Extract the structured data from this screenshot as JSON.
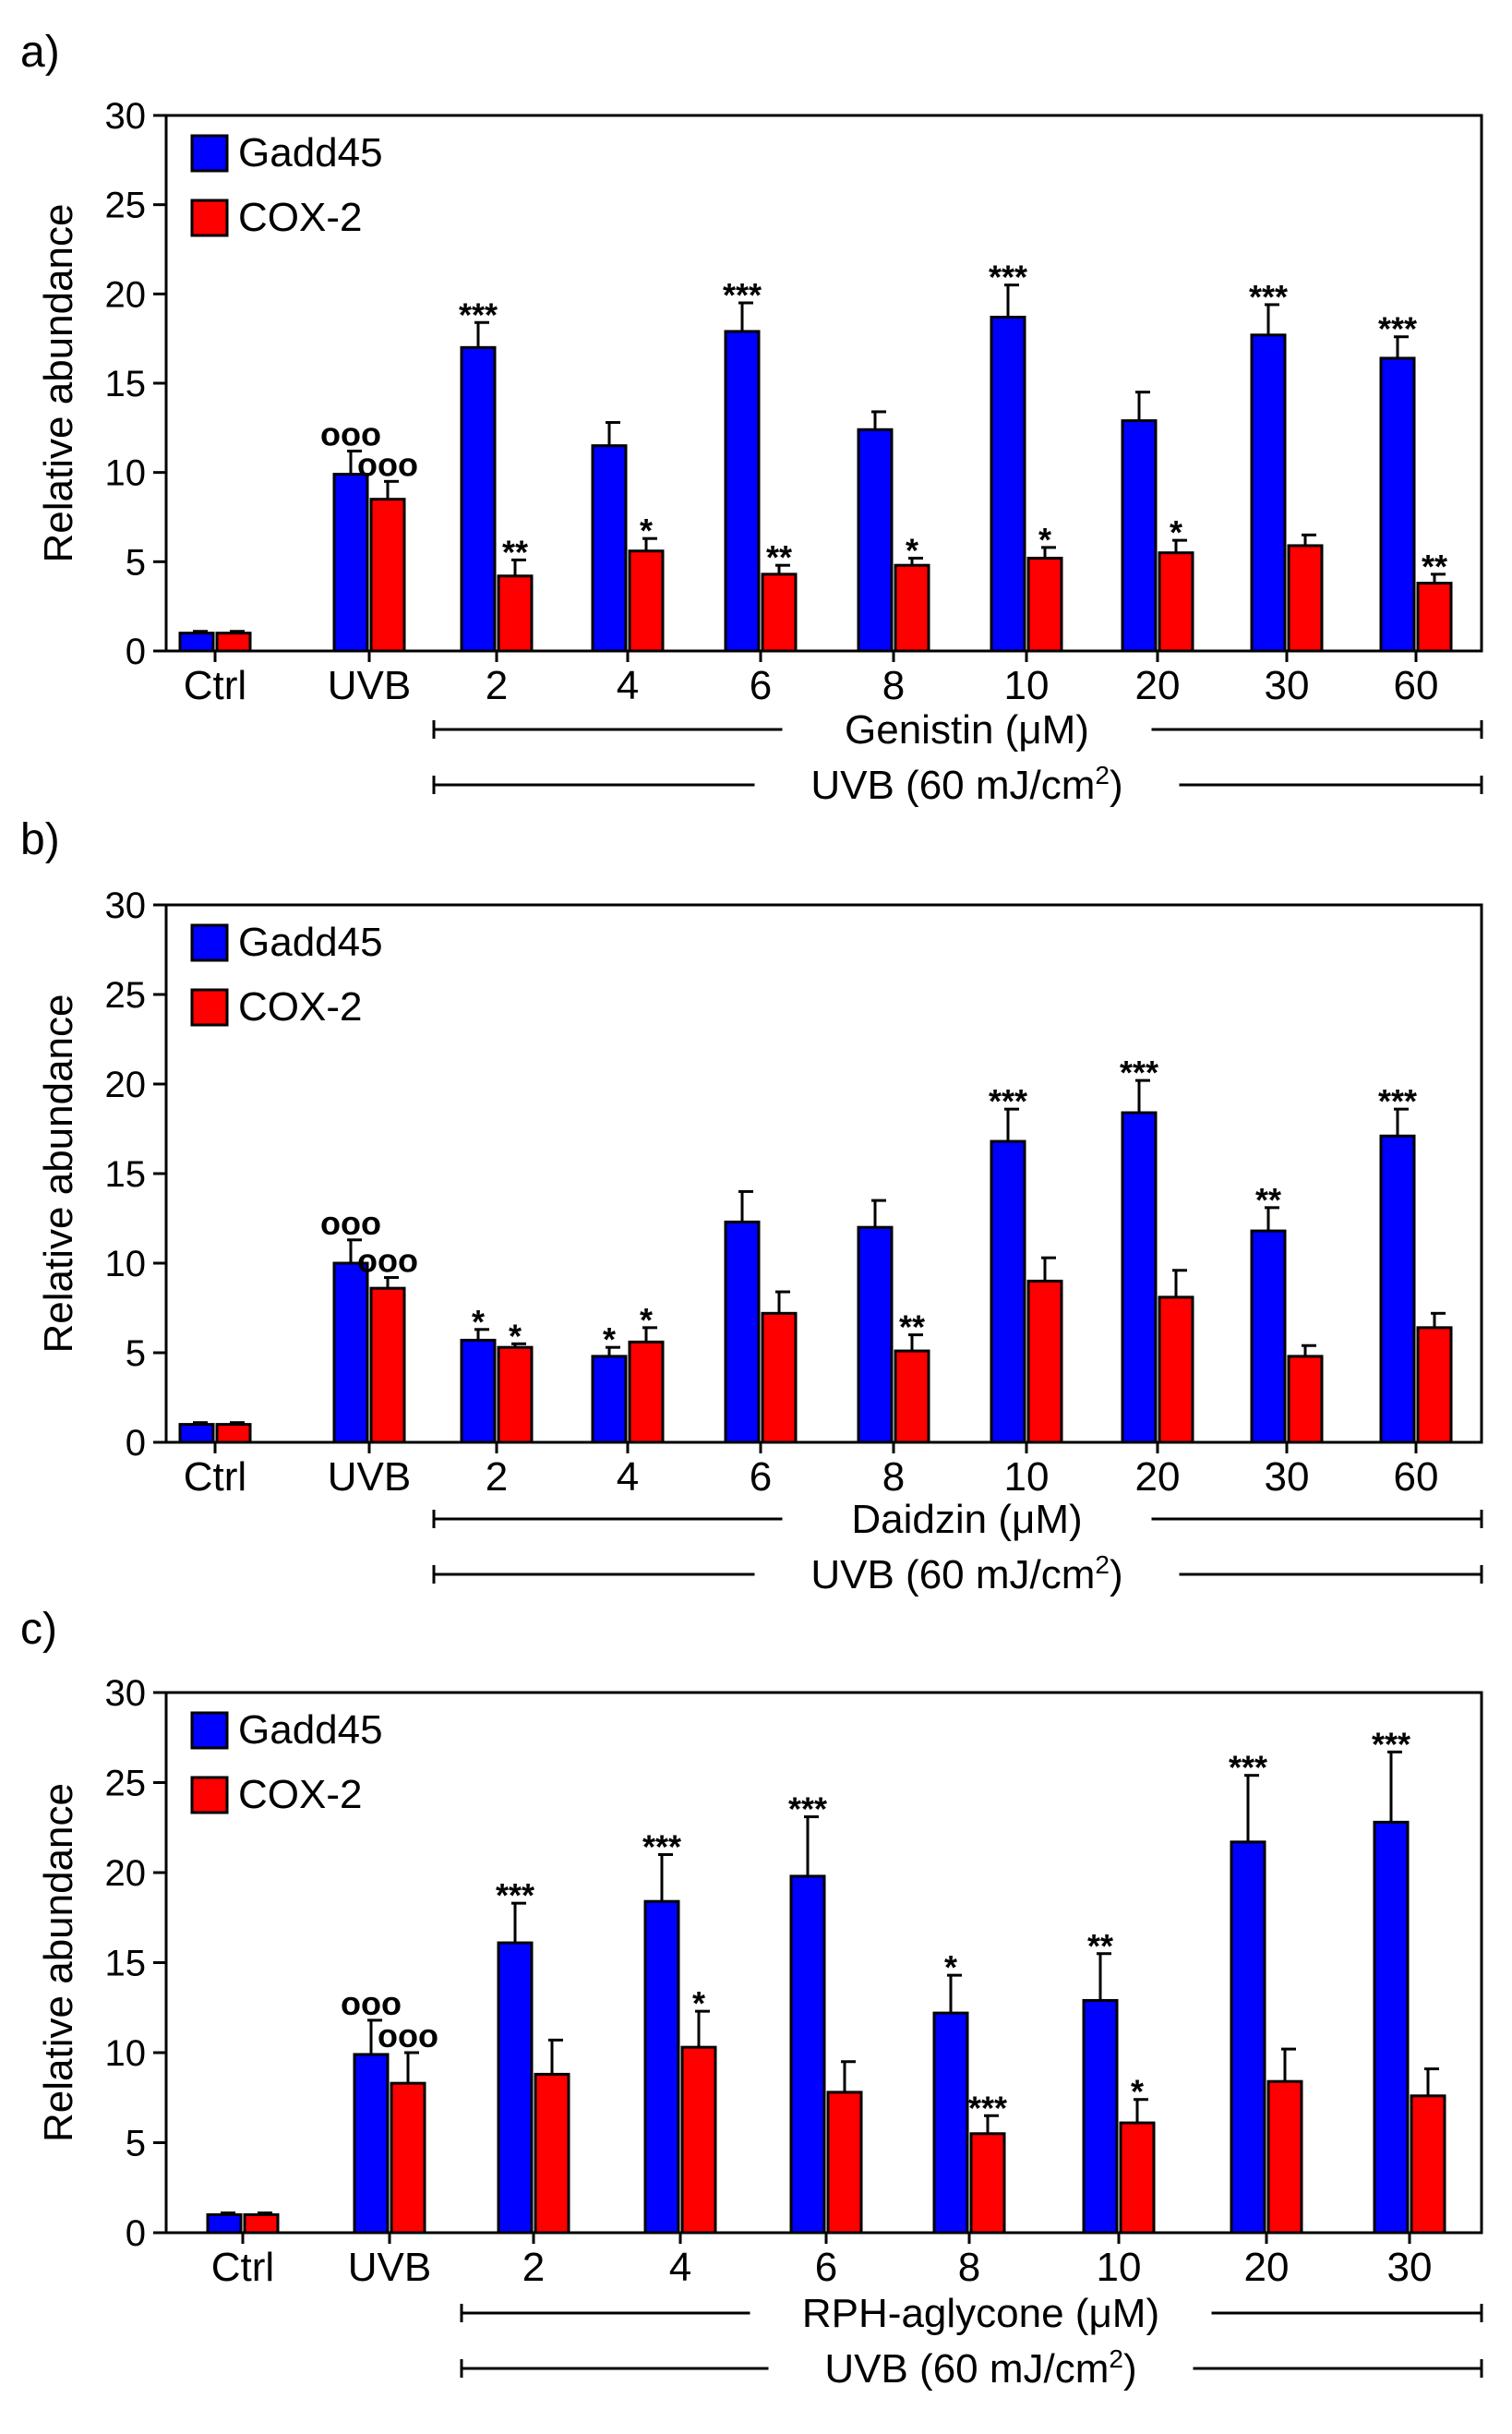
{
  "colors": {
    "gadd45": "#0000ff",
    "cox2": "#ff0000",
    "axis": "#000000"
  },
  "legend": [
    "Gadd45",
    "COX-2"
  ],
  "chart_data": [
    {
      "type": "bar",
      "panel": "a)",
      "ylabel": "Relative abundance",
      "ylim": [
        0,
        30
      ],
      "yticks": [
        0,
        5,
        10,
        15,
        20,
        25,
        30
      ],
      "categories": [
        "Ctrl",
        "UVB",
        "2",
        "4",
        "6",
        "8",
        "10",
        "20",
        "30",
        "60"
      ],
      "series": [
        {
          "name": "Gadd45",
          "values": [
            1.0,
            9.9,
            17.0,
            11.5,
            17.9,
            12.4,
            18.7,
            12.9,
            17.7,
            16.4
          ],
          "errors": [
            0.1,
            1.3,
            1.4,
            1.3,
            1.6,
            1.0,
            1.8,
            1.6,
            1.7,
            1.2
          ],
          "labels": [
            "",
            "ooo",
            "***",
            "",
            "***",
            "",
            "***",
            "",
            "***",
            "***"
          ]
        },
        {
          "name": "COX-2",
          "values": [
            1.0,
            8.5,
            4.2,
            5.6,
            4.3,
            4.8,
            5.2,
            5.5,
            5.9,
            3.8
          ],
          "errors": [
            0.1,
            1.0,
            0.9,
            0.7,
            0.5,
            0.4,
            0.6,
            0.7,
            0.6,
            0.5
          ],
          "labels": [
            "",
            "ooo",
            "**",
            "*",
            "**",
            "*",
            "*",
            "*",
            "",
            "**"
          ]
        }
      ],
      "bracket1": "Genistin (μM)",
      "bracket2": "UVB (60 mJ/cm",
      "bracket2_sup": "2",
      "bracket2_end": ")"
    },
    {
      "type": "bar",
      "panel": "b)",
      "ylabel": "Relative abundance",
      "ylim": [
        0,
        30
      ],
      "yticks": [
        0,
        5,
        10,
        15,
        20,
        25,
        30
      ],
      "categories": [
        "Ctrl",
        "UVB",
        "2",
        "4",
        "6",
        "8",
        "10",
        "20",
        "30",
        "60"
      ],
      "series": [
        {
          "name": "Gadd45",
          "values": [
            1.0,
            10.0,
            5.7,
            4.8,
            12.3,
            12.0,
            16.8,
            18.4,
            11.8,
            17.1
          ],
          "errors": [
            0.1,
            1.3,
            0.6,
            0.5,
            1.7,
            1.5,
            1.8,
            1.8,
            1.3,
            1.5
          ],
          "labels": [
            "",
            "ooo",
            "*",
            "*",
            "",
            "",
            "***",
            "***",
            "**",
            "***"
          ]
        },
        {
          "name": "COX-2",
          "values": [
            1.0,
            8.6,
            5.3,
            5.6,
            7.2,
            5.1,
            9.0,
            8.1,
            4.8,
            6.4
          ],
          "errors": [
            0.1,
            0.6,
            0.2,
            0.8,
            1.2,
            0.9,
            1.3,
            1.5,
            0.6,
            0.8
          ],
          "labels": [
            "",
            "ooo",
            "*",
            "*",
            "",
            "**",
            "",
            "",
            "",
            ""
          ]
        }
      ],
      "bracket1": "Daidzin (μM)",
      "bracket2": "UVB (60 mJ/cm",
      "bracket2_sup": "2",
      "bracket2_end": ")"
    },
    {
      "type": "bar",
      "panel": "c)",
      "ylabel": "Relative abundance",
      "ylim": [
        0,
        30
      ],
      "yticks": [
        0,
        5,
        10,
        15,
        20,
        25,
        30
      ],
      "categories": [
        "Ctrl",
        "UVB",
        "2",
        "4",
        "6",
        "8",
        "10",
        "20",
        "30"
      ],
      "series": [
        {
          "name": "Gadd45",
          "values": [
            1.0,
            9.9,
            16.1,
            18.4,
            19.8,
            12.2,
            12.9,
            21.7,
            22.8
          ],
          "errors": [
            0.1,
            1.9,
            2.2,
            2.6,
            3.3,
            2.1,
            2.6,
            3.7,
            3.9
          ],
          "labels": [
            "",
            "ooo",
            "***",
            "***",
            "***",
            "*",
            "**",
            "***",
            "***"
          ]
        },
        {
          "name": "COX-2",
          "values": [
            1.0,
            8.3,
            8.8,
            10.3,
            7.8,
            5.5,
            6.1,
            8.4,
            7.6
          ],
          "errors": [
            0.1,
            1.7,
            1.9,
            2.0,
            1.7,
            1.0,
            1.3,
            1.8,
            1.5
          ],
          "labels": [
            "",
            "ooo",
            "",
            "*",
            "",
            "***",
            "*",
            "",
            ""
          ]
        }
      ],
      "bracket1": "RPH-aglycone (μM)",
      "bracket2": "UVB (60 mJ/cm",
      "bracket2_sup": "2",
      "bracket2_end": ")"
    }
  ]
}
